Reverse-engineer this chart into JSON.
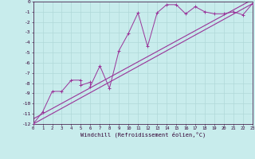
{
  "xlabel": "Windchill (Refroidissement éolien,°C)",
  "bg_color": "#c8ecec",
  "grid_color": "#b0d8d8",
  "line_color": "#993399",
  "xlim": [
    0,
    23
  ],
  "ylim": [
    -12,
    0
  ],
  "xticks": [
    0,
    1,
    2,
    3,
    4,
    5,
    6,
    7,
    8,
    9,
    10,
    11,
    12,
    13,
    14,
    15,
    16,
    17,
    18,
    19,
    20,
    21,
    22,
    23
  ],
  "yticks": [
    0,
    -1,
    -2,
    -3,
    -4,
    -5,
    -6,
    -7,
    -8,
    -9,
    -10,
    -11,
    -12
  ],
  "ytick_labels": [
    "0",
    "-1",
    "-2",
    "-3",
    "-4",
    "-5",
    "-6",
    "-7",
    "-8",
    "-9",
    "-10",
    "-11",
    "-12"
  ],
  "xtick_labels": [
    "0",
    "1",
    "2",
    "3",
    "4",
    "5",
    "6",
    "7",
    "8",
    "9",
    "10",
    "11",
    "12",
    "13",
    "14",
    "15",
    "16",
    "17",
    "18",
    "19",
    "20",
    "21",
    "22",
    "23"
  ],
  "scatter_x": [
    0,
    1,
    2,
    3,
    4,
    5,
    5,
    6,
    6,
    7,
    8,
    9,
    10,
    11,
    12,
    13,
    14,
    15,
    16,
    17,
    18,
    19,
    20,
    21,
    22,
    23
  ],
  "scatter_y": [
    -12,
    -10.8,
    -8.8,
    -8.8,
    -7.7,
    -7.7,
    -8.2,
    -7.9,
    -8.3,
    -6.3,
    -8.5,
    -4.8,
    -3.1,
    -1.1,
    -4.4,
    -1.1,
    -0.3,
    -0.3,
    -1.2,
    -0.5,
    -1.0,
    -1.2,
    -1.2,
    -1.0,
    -1.3,
    -0.2
  ],
  "line1_x": [
    0,
    23
  ],
  "line1_y": [
    -12,
    -0.2
  ],
  "line2_x": [
    0,
    23
  ],
  "line2_y": [
    -11.5,
    0.2
  ]
}
